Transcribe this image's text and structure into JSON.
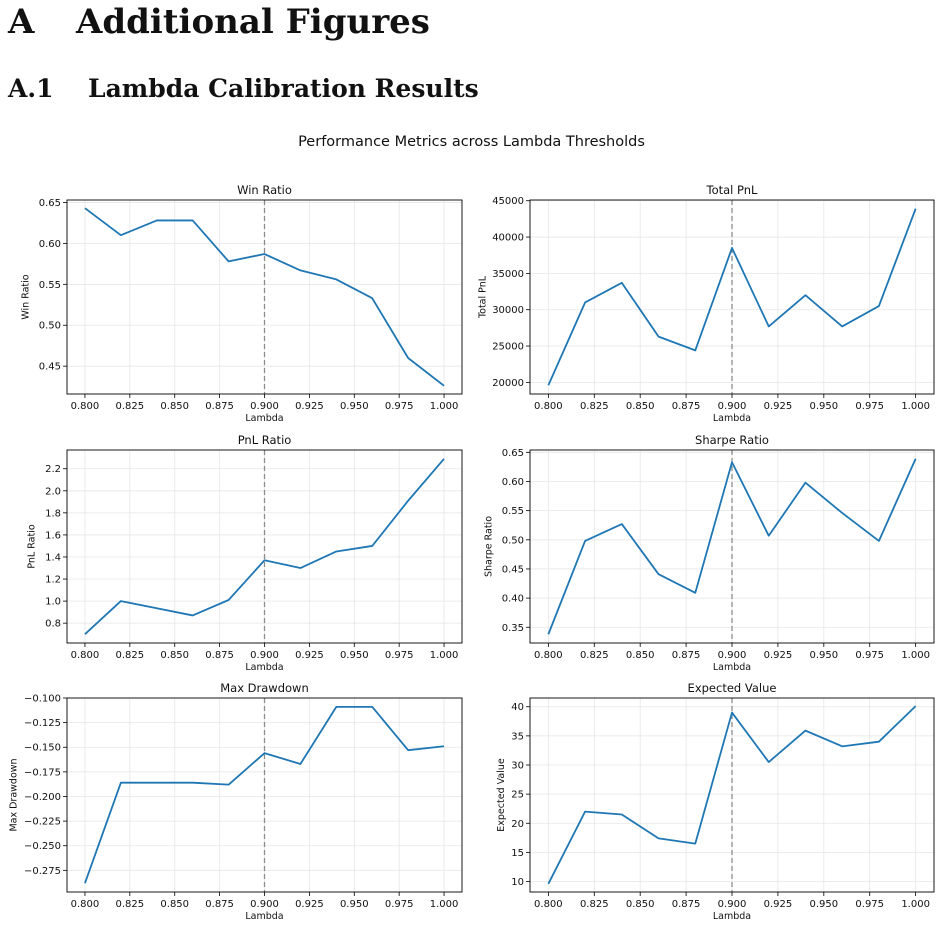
{
  "document": {
    "section_number": "A",
    "section_title": "Additional Figures",
    "subsection_number": "A.1",
    "subsection_title": "Lambda Calibration Results"
  },
  "figure": {
    "suptitle": "Performance Metrics across Lambda Thresholds",
    "reference_line_x": 0.9,
    "line_color": "#1f77b4",
    "reference_line_color": "#8c8c8c",
    "grid": true
  },
  "chart_data": [
    {
      "type": "line",
      "title": "Win Ratio",
      "xlabel": "Lambda",
      "ylabel": "Win Ratio",
      "x": [
        0.8,
        0.82,
        0.84,
        0.86,
        0.88,
        0.9,
        0.92,
        0.94,
        0.96,
        0.98,
        1.0
      ],
      "y": [
        0.643,
        0.61,
        0.628,
        0.628,
        0.578,
        0.587,
        0.567,
        0.556,
        0.533,
        0.46,
        0.426
      ],
      "xlim": [
        0.79,
        1.01
      ],
      "ylim": [
        0.416,
        0.653
      ],
      "xticks": [
        0.8,
        0.825,
        0.85,
        0.875,
        0.9,
        0.925,
        0.95,
        0.975,
        1.0
      ],
      "xtick_labels": [
        "0.800",
        "0.825",
        "0.850",
        "0.875",
        "0.900",
        "0.925",
        "0.950",
        "0.975",
        "1.000"
      ],
      "yticks": [
        0.45,
        0.5,
        0.55,
        0.6,
        0.65
      ],
      "ytick_labels": [
        "0.45",
        "0.50",
        "0.55",
        "0.60",
        "0.65"
      ]
    },
    {
      "type": "line",
      "title": "Total PnL",
      "xlabel": "Lambda",
      "ylabel": "Total PnL",
      "x": [
        0.8,
        0.82,
        0.84,
        0.86,
        0.88,
        0.9,
        0.92,
        0.94,
        0.96,
        0.98,
        1.0
      ],
      "y": [
        19600,
        31000,
        33700,
        26300,
        24400,
        38500,
        27700,
        32000,
        27700,
        30500,
        43900
      ],
      "xlim": [
        0.79,
        1.01
      ],
      "ylim": [
        18400,
        45100
      ],
      "xticks": [
        0.8,
        0.825,
        0.85,
        0.875,
        0.9,
        0.925,
        0.95,
        0.975,
        1.0
      ],
      "xtick_labels": [
        "0.800",
        "0.825",
        "0.850",
        "0.875",
        "0.900",
        "0.925",
        "0.950",
        "0.975",
        "1.000"
      ],
      "yticks": [
        20000,
        25000,
        30000,
        35000,
        40000,
        45000
      ],
      "ytick_labels": [
        "20000",
        "25000",
        "30000",
        "35000",
        "40000",
        "45000"
      ]
    },
    {
      "type": "line",
      "title": "PnL Ratio",
      "xlabel": "Lambda",
      "ylabel": "PnL Ratio",
      "x": [
        0.8,
        0.82,
        0.84,
        0.86,
        0.88,
        0.9,
        0.92,
        0.94,
        0.96,
        0.98,
        1.0
      ],
      "y": [
        0.7,
        1.0,
        0.935,
        0.87,
        1.01,
        1.37,
        1.3,
        1.45,
        1.5,
        1.91,
        2.29
      ],
      "xlim": [
        0.79,
        1.01
      ],
      "ylim": [
        0.62,
        2.37
      ],
      "xticks": [
        0.8,
        0.825,
        0.85,
        0.875,
        0.9,
        0.925,
        0.95,
        0.975,
        1.0
      ],
      "xtick_labels": [
        "0.800",
        "0.825",
        "0.850",
        "0.875",
        "0.900",
        "0.925",
        "0.950",
        "0.975",
        "1.000"
      ],
      "yticks": [
        0.8,
        1.0,
        1.2,
        1.4,
        1.6,
        1.8,
        2.0,
        2.2
      ],
      "ytick_labels": [
        "0.8",
        "1.0",
        "1.2",
        "1.4",
        "1.6",
        "1.8",
        "2.0",
        "2.2"
      ]
    },
    {
      "type": "line",
      "title": "Sharpe Ratio",
      "xlabel": "Lambda",
      "ylabel": "Sharpe Ratio",
      "x": [
        0.8,
        0.82,
        0.84,
        0.86,
        0.88,
        0.9,
        0.92,
        0.94,
        0.96,
        0.98,
        1.0
      ],
      "y": [
        0.338,
        0.498,
        0.527,
        0.441,
        0.409,
        0.633,
        0.507,
        0.598,
        0.546,
        0.498,
        0.639
      ],
      "xlim": [
        0.79,
        1.01
      ],
      "ylim": [
        0.323,
        0.654
      ],
      "xticks": [
        0.8,
        0.825,
        0.85,
        0.875,
        0.9,
        0.925,
        0.95,
        0.975,
        1.0
      ],
      "xtick_labels": [
        "0.800",
        "0.825",
        "0.850",
        "0.875",
        "0.900",
        "0.925",
        "0.950",
        "0.975",
        "1.000"
      ],
      "yticks": [
        0.35,
        0.4,
        0.45,
        0.5,
        0.55,
        0.6,
        0.65
      ],
      "ytick_labels": [
        "0.35",
        "0.40",
        "0.45",
        "0.50",
        "0.55",
        "0.60",
        "0.65"
      ]
    },
    {
      "type": "line",
      "title": "Max Drawdown",
      "xlabel": "Lambda",
      "ylabel": "Max Drawdown",
      "x": [
        0.8,
        0.82,
        0.84,
        0.86,
        0.88,
        0.9,
        0.92,
        0.94,
        0.96,
        0.98,
        1.0
      ],
      "y": [
        -0.288,
        -0.186,
        -0.186,
        -0.186,
        -0.188,
        -0.156,
        -0.167,
        -0.109,
        -0.109,
        -0.153,
        -0.149
      ],
      "xlim": [
        0.79,
        1.01
      ],
      "ylim": [
        -0.297,
        -0.1
      ],
      "xticks": [
        0.8,
        0.825,
        0.85,
        0.875,
        0.9,
        0.925,
        0.95,
        0.975,
        1.0
      ],
      "xtick_labels": [
        "0.800",
        "0.825",
        "0.850",
        "0.875",
        "0.900",
        "0.925",
        "0.950",
        "0.975",
        "1.000"
      ],
      "yticks": [
        -0.275,
        -0.25,
        -0.225,
        -0.2,
        -0.175,
        -0.15,
        -0.125,
        -0.1
      ],
      "ytick_labels": [
        "−0.275",
        "−0.250",
        "−0.225",
        "−0.200",
        "−0.175",
        "−0.150",
        "−0.125",
        "−0.100"
      ]
    },
    {
      "type": "line",
      "title": "Expected Value",
      "xlabel": "Lambda",
      "ylabel": "Expected Value",
      "x": [
        0.8,
        0.82,
        0.84,
        0.86,
        0.88,
        0.9,
        0.92,
        0.94,
        0.96,
        0.98,
        1.0
      ],
      "y": [
        9.6,
        22.0,
        21.5,
        17.4,
        16.5,
        39.0,
        30.5,
        35.9,
        33.2,
        34.0,
        40.1
      ],
      "xlim": [
        0.79,
        1.01
      ],
      "ylim": [
        8.2,
        41.5
      ],
      "xticks": [
        0.8,
        0.825,
        0.85,
        0.875,
        0.9,
        0.925,
        0.95,
        0.975,
        1.0
      ],
      "xtick_labels": [
        "0.800",
        "0.825",
        "0.850",
        "0.875",
        "0.900",
        "0.925",
        "0.950",
        "0.975",
        "1.000"
      ],
      "yticks": [
        10,
        15,
        20,
        25,
        30,
        35,
        40
      ],
      "ytick_labels": [
        "10",
        "15",
        "20",
        "25",
        "30",
        "35",
        "40"
      ]
    }
  ]
}
